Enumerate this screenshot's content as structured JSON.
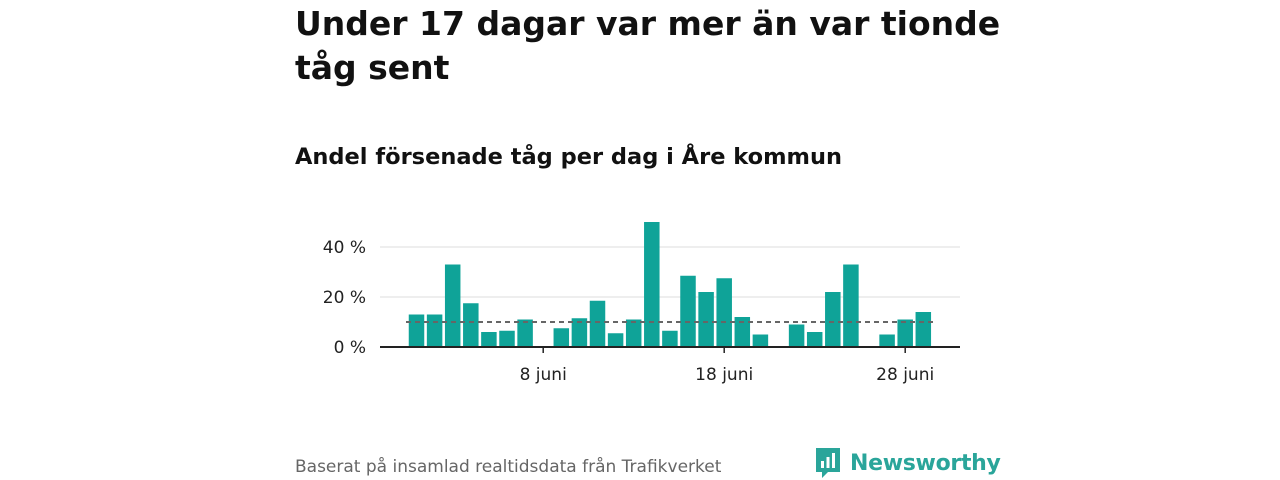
{
  "header": {
    "title": "Under 17 dagar var mer än var tionde tåg sent",
    "subtitle": "Andel försenade tåg per dag i Åre kommun"
  },
  "footer": {
    "source": "Baserat på insamlad realtidsdata från Trafikverket",
    "brand": "Newsworthy"
  },
  "colors": {
    "bar": "#0fa398",
    "reference_line": "#666666",
    "brand": "#2aa59a"
  },
  "chart_data": {
    "type": "bar",
    "x": [
      1,
      2,
      3,
      4,
      5,
      6,
      7,
      8,
      9,
      10,
      11,
      12,
      13,
      14,
      15,
      16,
      17,
      18,
      19,
      20,
      21,
      22,
      23,
      24,
      25,
      26,
      27,
      28,
      29,
      30
    ],
    "values": [
      13,
      13,
      33,
      17.5,
      6,
      6.5,
      11,
      0,
      7.5,
      11.5,
      18.5,
      5.5,
      11,
      50,
      6.5,
      28.5,
      22,
      27.5,
      12,
      5,
      0,
      9,
      6,
      22,
      33,
      0,
      5,
      11,
      14,
      null
    ],
    "x_unit": "juni",
    "xticks": [
      {
        "value": 8,
        "label": "8 juni"
      },
      {
        "value": 18,
        "label": "18 juni"
      },
      {
        "value": 28,
        "label": "28 juni"
      }
    ],
    "yticks": [
      {
        "value": 0,
        "label": "0 %"
      },
      {
        "value": 20,
        "label": "20 %"
      },
      {
        "value": 40,
        "label": "40 %"
      }
    ],
    "ylim": [
      0,
      50
    ],
    "reference_line": 10,
    "grid": true
  }
}
